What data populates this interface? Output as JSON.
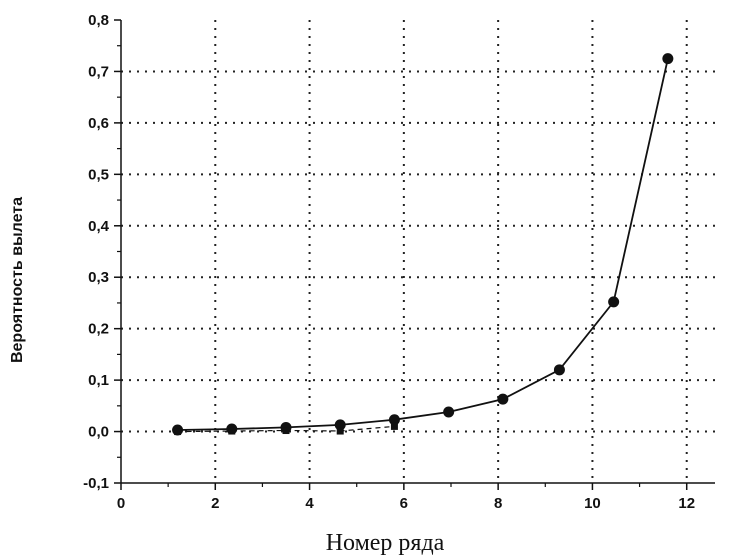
{
  "chart_data": {
    "type": "line",
    "title": "",
    "xlabel": "Номер ряда",
    "ylabel": "Вероятность вылета",
    "xlim": [
      0,
      12.6
    ],
    "ylim": [
      -0.1,
      0.8
    ],
    "x_ticks": [
      0,
      2,
      4,
      6,
      8,
      10,
      12
    ],
    "x_tick_labels": [
      "0",
      "2",
      "4",
      "6",
      "8",
      "10",
      "12"
    ],
    "y_ticks": [
      -0.1,
      0.0,
      0.1,
      0.2,
      0.3,
      0.4,
      0.5,
      0.6,
      0.7,
      0.8
    ],
    "y_tick_labels": [
      "-0,1",
      "0,0",
      "0,1",
      "0,2",
      "0,3",
      "0,4",
      "0,5",
      "0,6",
      "0,7",
      "0,8"
    ],
    "grid": true,
    "grid_style": "dotted",
    "series": [
      {
        "x": [
          1.2,
          2.35,
          3.5,
          4.65,
          5.8,
          6.95,
          8.1,
          9.3,
          10.45,
          11.6
        ],
        "y": [
          0.003,
          0.005,
          0.008,
          0.013,
          0.023,
          0.038,
          0.063,
          0.12,
          0.252,
          0.725
        ],
        "marker": "circle",
        "color": "#111111"
      },
      {
        "x": [
          1.2,
          2.35,
          3.5,
          4.65,
          5.8
        ],
        "y": [
          0.0,
          0.001,
          0.002,
          0.001,
          0.01
        ],
        "marker": "square",
        "line_style": "dashed",
        "color": "#111111"
      }
    ]
  }
}
